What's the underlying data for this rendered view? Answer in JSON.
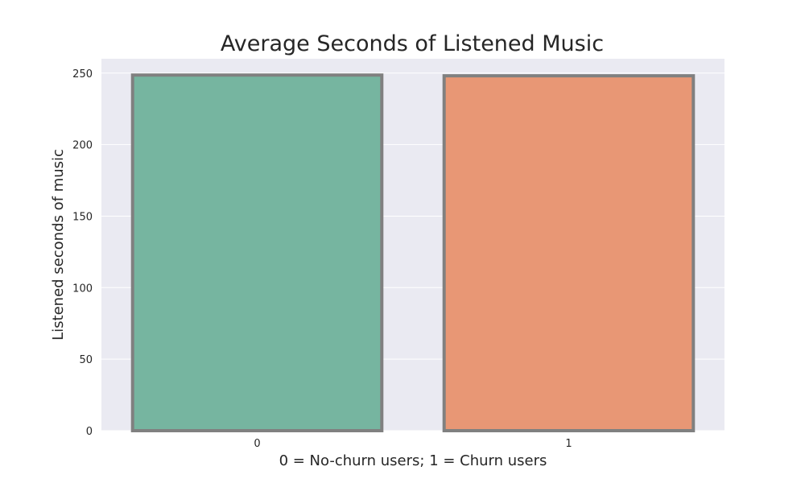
{
  "chart_data": {
    "type": "bar",
    "title": "Average Seconds of Listened Music",
    "xlabel": "0 = No-churn users; 1 = Churn users",
    "ylabel": "Listened seconds of music",
    "categories": [
      "0",
      "1"
    ],
    "values": [
      248.6,
      248.1
    ],
    "ylim": [
      0,
      260
    ],
    "yticks": [
      0,
      50,
      100,
      150,
      200,
      250
    ],
    "grid": true,
    "colors": {
      "plot_background": "#eaeaf2",
      "grid": "#ffffff",
      "bar_edge": "#808080",
      "bars": [
        "#76b5a0",
        "#e89775"
      ],
      "text": "#262626"
    }
  }
}
